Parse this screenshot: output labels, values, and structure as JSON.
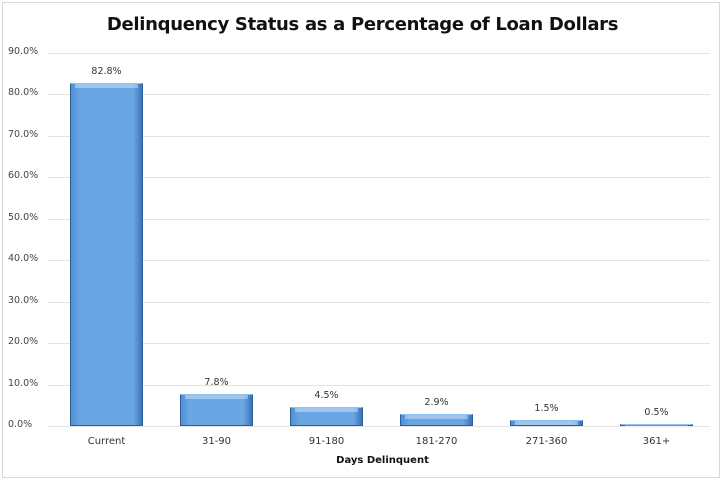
{
  "chart_data": {
    "type": "bar",
    "title": "Delinquency Status as a Percentage of Loan Dollars",
    "xlabel": "Days Delinquent",
    "ylabel": "",
    "categories": [
      "Current",
      "31-90",
      "91-180",
      "181-270",
      "271-360",
      "361+"
    ],
    "values": [
      82.8,
      7.8,
      4.5,
      2.9,
      1.5,
      0.5
    ],
    "value_labels": [
      "82.8%",
      "7.8%",
      "4.5%",
      "2.9%",
      "1.5%",
      "0.5%"
    ],
    "yticks": [
      "0.0%",
      "10.0%",
      "20.0%",
      "30.0%",
      "40.0%",
      "50.0%",
      "60.0%",
      "70.0%",
      "80.0%",
      "90.0%"
    ],
    "ylim": [
      0,
      90
    ],
    "grid": true,
    "legend": "none",
    "bar_color": "#6aa6e4"
  }
}
